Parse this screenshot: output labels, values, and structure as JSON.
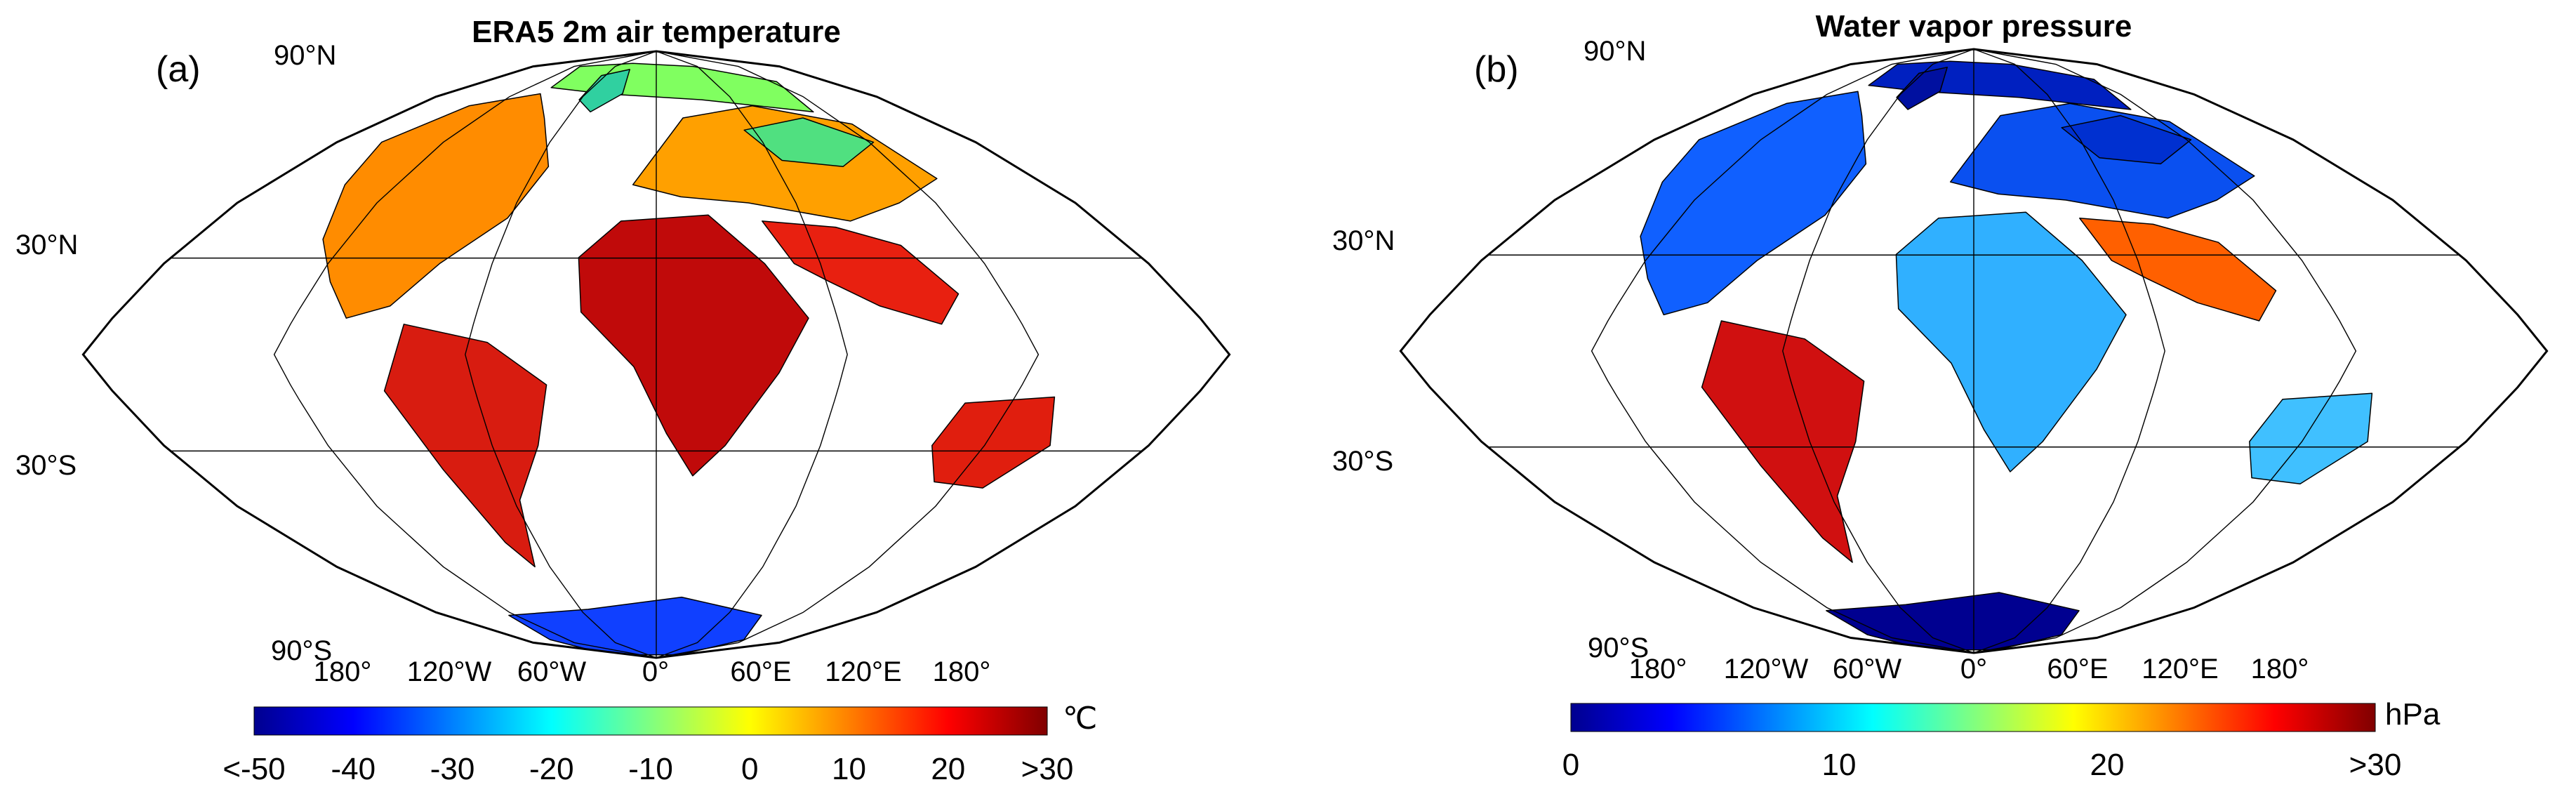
{
  "panels": [
    {
      "id": "a",
      "letter": "(a)",
      "title": "ERA5 2m air temperature",
      "lat_labels": [
        "90°N",
        "30°N",
        "30°S",
        "90°S"
      ],
      "lon_labels": [
        "180°",
        "120°W",
        "60°W",
        "0°",
        "60°E",
        "120°E",
        "180°"
      ],
      "colorbar": {
        "ticks": [
          "<-50",
          "-40",
          "-30",
          "-20",
          "-10",
          "0",
          "10",
          "20",
          ">30"
        ],
        "unit": "℃",
        "colors": [
          "#00008f",
          "#0000ff",
          "#0080ff",
          "#00ffff",
          "#80ff80",
          "#ffff00",
          "#ff8000",
          "#ff0000",
          "#800000"
        ]
      },
      "land_colors": {
        "north_america": "#ff8c00",
        "arctic_north": "#80ff60",
        "south_america": "#d81c10",
        "africa": "#c00a0a",
        "europe_asia": "#ffa000",
        "siberia": "#50e080",
        "south_asia": "#e82010",
        "australia": "#e01e0e",
        "antarctica": "#1040ff",
        "greenland_edge": "#30d0a0"
      }
    },
    {
      "id": "b",
      "letter": "(b)",
      "title": "Water vapor pressure",
      "lat_labels": [
        "90°N",
        "30°N",
        "30°S",
        "90°S"
      ],
      "lon_labels": [
        "180°",
        "120°W",
        "60°W",
        "0°",
        "60°E",
        "120°E",
        "180°"
      ],
      "colorbar": {
        "ticks": [
          "0",
          "10",
          "20",
          ">30"
        ],
        "unit": "hPa",
        "colors": [
          "#00008f",
          "#0000ff",
          "#0080ff",
          "#00ffff",
          "#80ff80",
          "#ffff00",
          "#ff8000",
          "#ff0000",
          "#800000"
        ]
      },
      "land_colors": {
        "north_america": "#1060ff",
        "arctic_north": "#0020c0",
        "south_america": "#d01010",
        "africa": "#30b0ff",
        "europe_asia": "#0a50f0",
        "siberia": "#0030d0",
        "south_asia": "#ff6000",
        "australia": "#40c0ff",
        "antarctica": "#000090",
        "greenland_edge": "#0010a0"
      }
    }
  ]
}
